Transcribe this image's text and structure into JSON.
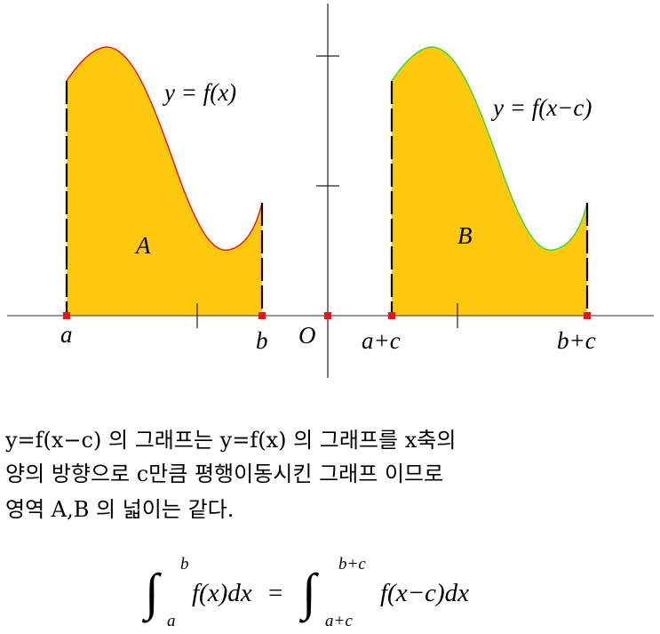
{
  "graph": {
    "curve_left_label": "y = f(x)",
    "curve_right_label": "y = f(x−c)",
    "region_left": "A",
    "region_right": "B",
    "x_labels": [
      "a",
      "b",
      "O",
      "a+c",
      "b+c"
    ],
    "colors": {
      "fill": "#fec80c",
      "left_curve": "#ff0000",
      "right_curve": "#22dd22",
      "point": "#ee1111"
    }
  },
  "explanation": {
    "line1": "y=f(x−c) 의 그래프는 y=f(x) 의 그래프를 x축의",
    "line2": "양의 방향으로 c만큼 평행이동시킨 그래프 이므로",
    "line3": "영역 A,B 의 넓이는 같다."
  },
  "formula": {
    "lhs_upper": "b",
    "lhs_lower": "a",
    "lhs_integrand": "f(x)dx",
    "equals": "=",
    "rhs_upper": "b+c",
    "rhs_lower": "a+c",
    "rhs_integrand": "f(x−c)dx"
  }
}
